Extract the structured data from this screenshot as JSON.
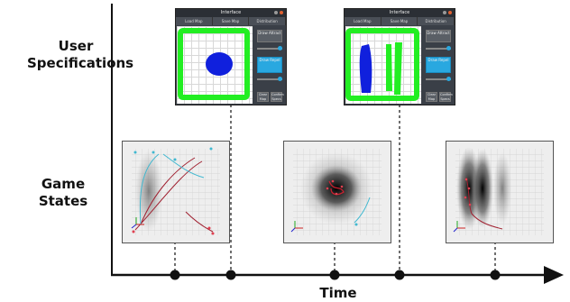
{
  "row_labels": {
    "user_line1": "User",
    "user_line2": "Specifications",
    "game_line1": "Game",
    "game_line2": "States"
  },
  "axis": {
    "label": "Time"
  },
  "interface_window": {
    "title": "Interface",
    "menu": [
      "Load Map",
      "Save Map",
      "Distribution Overlay"
    ],
    "buttons": [
      "Draw Attract",
      "Draw Repel",
      "Clear Map",
      "Confirm Specs"
    ]
  },
  "colors": {
    "stroke_green": "#22ee22",
    "blob_blue": "#1020dd",
    "accent_blue": "#29a8e0",
    "dark_red": "#a02030",
    "cyan": "#40b8d0"
  },
  "timeline": {
    "game_state_markers": 3,
    "spec_markers": 2
  }
}
